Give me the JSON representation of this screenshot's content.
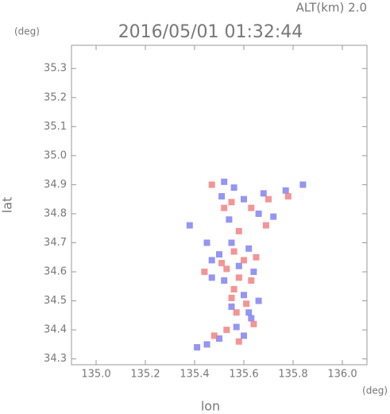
{
  "chart_data": {
    "type": "scatter",
    "title": "2016/05/01 01:32:44",
    "annotation": "ALT(km) 2.0",
    "y_unit": "(deg)",
    "x_unit": "(deg)",
    "xlabel": "lon",
    "ylabel": "lat",
    "xlim": [
      134.9,
      136.1
    ],
    "ylim": [
      34.28,
      35.38
    ],
    "xticks": [
      {
        "value": 135.0,
        "label": "135.0"
      },
      {
        "value": 135.2,
        "label": "135.2"
      },
      {
        "value": 135.4,
        "label": "135.4"
      },
      {
        "value": 135.6,
        "label": "135.6"
      },
      {
        "value": 135.8,
        "label": "135.8"
      },
      {
        "value": 136.0,
        "label": "136.0"
      }
    ],
    "yticks": [
      {
        "value": 34.3,
        "label": "34.3"
      },
      {
        "value": 34.4,
        "label": "34.4"
      },
      {
        "value": 34.5,
        "label": "34.5"
      },
      {
        "value": 34.6,
        "label": "34.6"
      },
      {
        "value": 34.7,
        "label": "34.7"
      },
      {
        "value": 34.8,
        "label": "34.8"
      },
      {
        "value": 34.9,
        "label": "34.9"
      },
      {
        "value": 35.0,
        "label": "35.0"
      },
      {
        "value": 35.1,
        "label": "35.1"
      },
      {
        "value": 35.2,
        "label": "35.2"
      },
      {
        "value": 35.3,
        "label": "35.3"
      }
    ],
    "series": [
      {
        "color": "#7a7af0",
        "x": [
          135.52,
          135.56,
          135.51,
          135.6,
          135.68,
          135.77,
          135.84,
          135.66,
          135.38,
          135.45,
          135.47,
          135.5,
          135.55,
          135.62,
          135.58,
          135.64,
          135.52,
          135.47,
          135.6,
          135.66,
          135.55,
          135.63,
          135.57,
          135.6,
          135.5,
          135.45,
          135.41,
          135.62,
          135.54,
          135.72
        ],
        "y": [
          34.91,
          34.89,
          34.86,
          34.85,
          34.87,
          34.88,
          34.9,
          34.8,
          34.76,
          34.7,
          34.64,
          34.66,
          34.7,
          34.68,
          34.62,
          34.6,
          34.57,
          34.58,
          34.52,
          34.5,
          34.48,
          34.44,
          34.41,
          34.38,
          34.37,
          34.35,
          34.34,
          34.46,
          34.78,
          34.79
        ]
      },
      {
        "color": "#f07a7a",
        "x": [
          135.47,
          135.55,
          135.63,
          135.7,
          135.52,
          135.58,
          135.56,
          135.6,
          135.53,
          135.58,
          135.63,
          135.56,
          135.61,
          135.57,
          135.64,
          135.53,
          135.58,
          135.48,
          135.51,
          135.65,
          135.44,
          135.69,
          135.78,
          135.55
        ],
        "y": [
          34.9,
          34.84,
          34.82,
          34.85,
          34.82,
          34.74,
          34.67,
          34.64,
          34.61,
          34.58,
          34.57,
          34.54,
          34.49,
          34.46,
          34.42,
          34.4,
          34.36,
          34.38,
          34.63,
          34.65,
          34.6,
          34.76,
          34.86,
          34.51
        ]
      }
    ]
  }
}
